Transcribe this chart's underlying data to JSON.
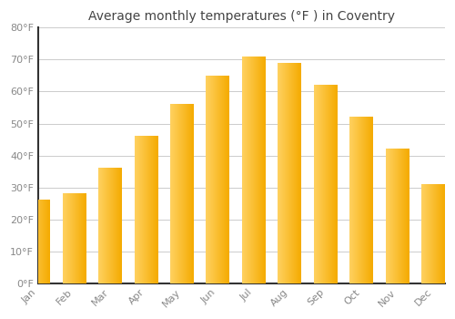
{
  "title": "Average monthly temperatures (°F ) in Coventry",
  "months": [
    "Jan",
    "Feb",
    "Mar",
    "Apr",
    "May",
    "Jun",
    "Jul",
    "Aug",
    "Sep",
    "Oct",
    "Nov",
    "Dec"
  ],
  "values": [
    26,
    28,
    36,
    46,
    56,
    65,
    71,
    69,
    62,
    52,
    42,
    31
  ],
  "ylim": [
    0,
    80
  ],
  "yticks": [
    0,
    10,
    20,
    30,
    40,
    50,
    60,
    70,
    80
  ],
  "ytick_labels": [
    "0°F",
    "10°F",
    "20°F",
    "30°F",
    "40°F",
    "50°F",
    "60°F",
    "70°F",
    "80°F"
  ],
  "bar_color_light": "#FFD060",
  "bar_color_dark": "#F5A800",
  "background_color": "#FFFFFF",
  "grid_color": "#CCCCCC",
  "title_fontsize": 10,
  "tick_fontsize": 8,
  "bar_width": 0.65,
  "fig_width": 5.0,
  "fig_height": 3.5
}
